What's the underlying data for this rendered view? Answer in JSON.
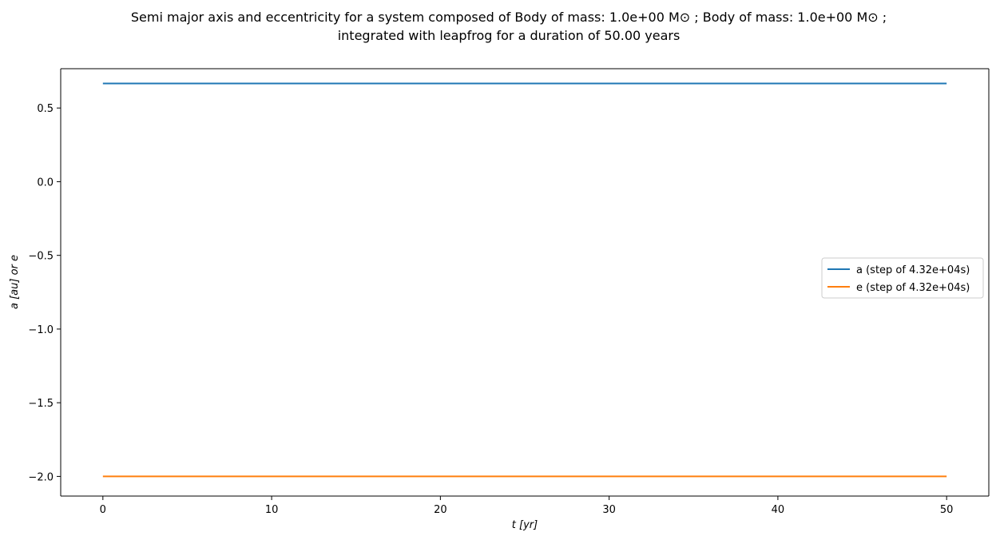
{
  "chart_data": {
    "type": "line",
    "title_lines": [
      "Semi major axis and eccentricity for a system composed of Body of mass: 1.0e+00 M⊙ ; Body of mass: 1.0e+00 M⊙ ;",
      "integrated with leapfrog for a duration of 50.00 years"
    ],
    "xlabel": "t [yr]",
    "ylabel": "a [au] or e",
    "xlim": [
      -2.5,
      52.5
    ],
    "ylim": [
      -2.1333,
      0.7667
    ],
    "xticks": [
      0,
      10,
      20,
      30,
      40,
      50
    ],
    "xtick_labels": [
      "0",
      "10",
      "20",
      "30",
      "40",
      "50"
    ],
    "yticks": [
      0.5,
      0.0,
      -0.5,
      -1.0,
      -1.5,
      -2.0
    ],
    "ytick_labels": [
      "0.5",
      "0.0",
      "−0.5",
      "−1.0",
      "−1.5",
      "−2.0"
    ],
    "grid": false,
    "legend_position": "center right",
    "series": [
      {
        "name": "a (step of 4.32e+04s)",
        "color": "#1f77b4",
        "x": [
          0,
          50
        ],
        "y": [
          0.6667,
          0.6667
        ]
      },
      {
        "name": "e (step of 4.32e+04s)",
        "color": "#ff7f0e",
        "x": [
          0,
          50
        ],
        "y": [
          -2.0,
          -2.0
        ]
      }
    ]
  }
}
